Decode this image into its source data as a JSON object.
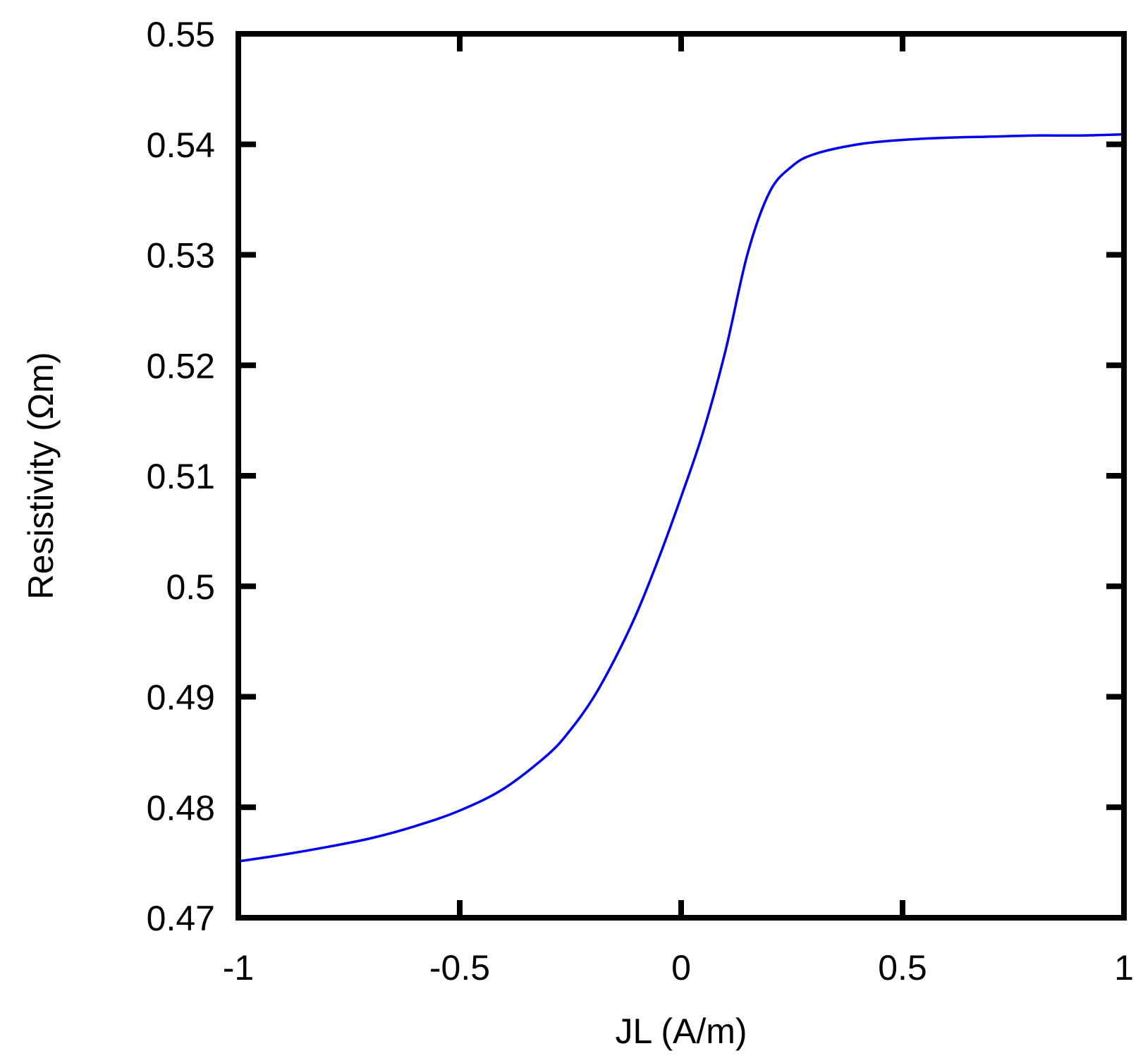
{
  "chart_data": {
    "type": "line",
    "title": "",
    "xlabel": "JL (A/m)",
    "ylabel": "Resistivity (Ωm)",
    "xlim": [
      -1,
      1
    ],
    "ylim": [
      0.47,
      0.55
    ],
    "x_ticks": [
      "-1",
      "-0.5",
      "0",
      "0.5",
      "1"
    ],
    "y_ticks": [
      "0.47",
      "0.48",
      "0.49",
      "0.5",
      "0.51",
      "0.52",
      "0.53",
      "0.54",
      "0.55"
    ],
    "grid": false,
    "legend": "none",
    "series": [
      {
        "color": "#0000ee",
        "x": [
          -1.0,
          -0.9,
          -0.8,
          -0.7,
          -0.6,
          -0.5,
          -0.4,
          -0.3,
          -0.25,
          -0.2,
          -0.15,
          -0.1,
          -0.05,
          0.0,
          0.05,
          0.1,
          0.15,
          0.2,
          0.25,
          0.3,
          0.4,
          0.5,
          0.6,
          0.7,
          0.8,
          0.9,
          1.0
        ],
        "y": [
          0.4751,
          0.4757,
          0.4764,
          0.4772,
          0.4783,
          0.4797,
          0.4817,
          0.4848,
          0.487,
          0.4898,
          0.4934,
          0.4976,
          0.5026,
          0.5081,
          0.514,
          0.5213,
          0.5301,
          0.5357,
          0.538,
          0.5391,
          0.54,
          0.5404,
          0.5406,
          0.5407,
          0.5408,
          0.5408,
          0.5409
        ]
      }
    ]
  }
}
